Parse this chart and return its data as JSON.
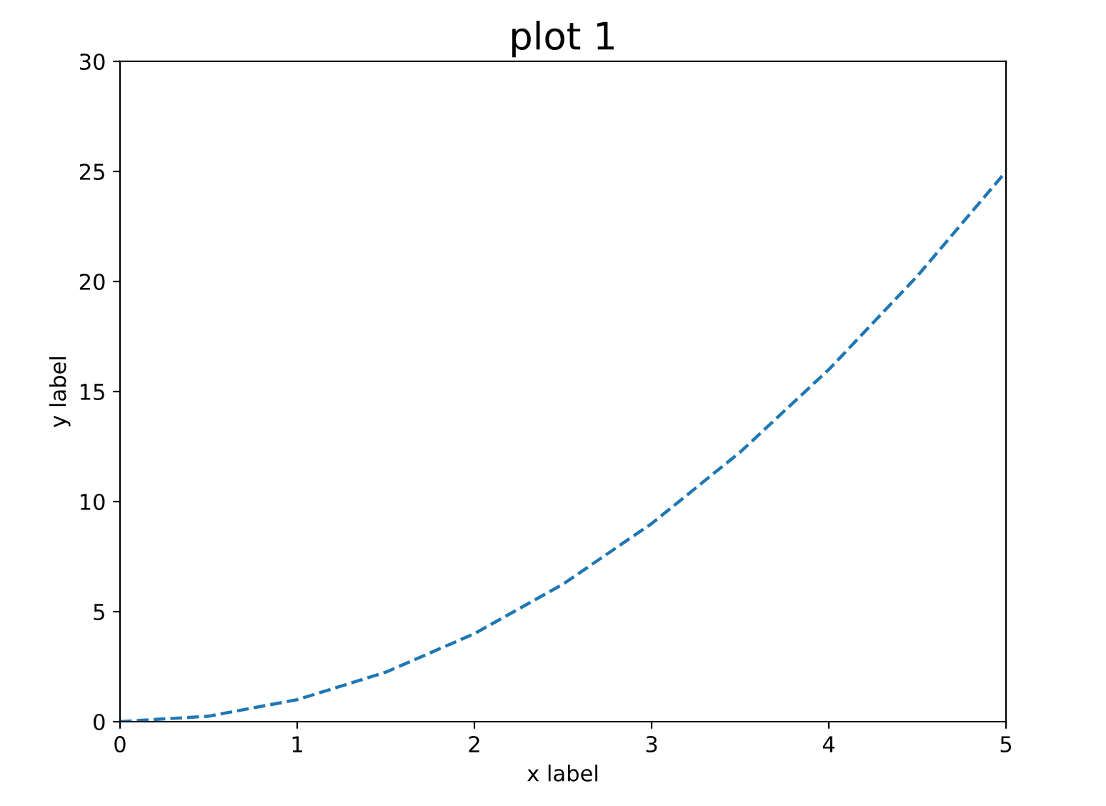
{
  "chart_data": {
    "type": "line",
    "title": "plot 1",
    "xlabel": "x label",
    "ylabel": "y label",
    "x": [
      0,
      0.5,
      1,
      1.5,
      2,
      2.5,
      3,
      3.5,
      4,
      4.5,
      5
    ],
    "series": [
      {
        "color": "#1f77b4",
        "values": [
          0,
          0.25,
          1,
          2.25,
          4,
          6.25,
          9,
          12.25,
          16,
          20.25,
          25
        ]
      }
    ],
    "xlim": [
      0,
      5
    ],
    "xticks": [
      0,
      1,
      2,
      3,
      4,
      5
    ],
    "ylim": [
      0,
      30
    ],
    "yticks": [
      0,
      5,
      10,
      15,
      20,
      25,
      30
    ],
    "grid": false,
    "line_style": "dashed"
  }
}
